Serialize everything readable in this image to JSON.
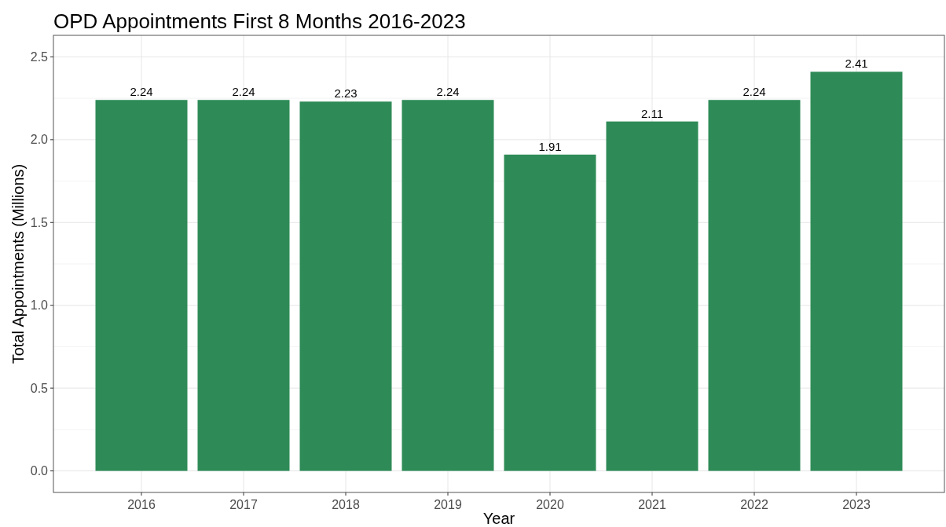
{
  "chart_data": {
    "type": "bar",
    "title": "OPD Appointments First 8 Months 2016-2023",
    "xlabel": "Year",
    "ylabel": "Total Appointments (Millions)",
    "categories": [
      "2016",
      "2017",
      "2018",
      "2019",
      "2020",
      "2021",
      "2022",
      "2023"
    ],
    "values": [
      2.24,
      2.24,
      2.23,
      2.24,
      1.91,
      2.11,
      2.24,
      2.41
    ],
    "color": "#2e8b57",
    "ylim": [
      -0.13,
      2.63
    ],
    "yticks": [
      {
        "value": 0,
        "label": "0.0"
      },
      {
        "value": 0.5,
        "label": "0.5"
      },
      {
        "value": 1,
        "label": "1.0"
      },
      {
        "value": 1.5,
        "label": "1.5"
      },
      {
        "value": 2,
        "label": "2.0"
      },
      {
        "value": 2.5,
        "label": "2.5"
      }
    ],
    "grid": true,
    "data_labels": true
  }
}
